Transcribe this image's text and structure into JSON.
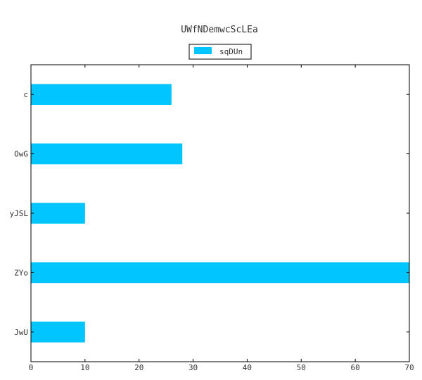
{
  "chart_data": {
    "type": "bar",
    "orientation": "horizontal",
    "title": "UWfNDemwcScLEa",
    "categories": [
      "c",
      "OwG",
      "yJSL",
      "ZYo",
      "JwU"
    ],
    "series": [
      {
        "name": "sqDUn",
        "values": [
          26,
          28,
          10,
          70,
          10
        ]
      }
    ],
    "xlim": [
      0,
      70
    ],
    "xticks": [
      0,
      10,
      20,
      30,
      40,
      50,
      60,
      70
    ],
    "xlabel": "",
    "ylabel": "",
    "grid": false,
    "legend_position": "top-center",
    "colors": {
      "bar": "#00c5ff",
      "axis": "#000000",
      "text": "#333333"
    }
  }
}
